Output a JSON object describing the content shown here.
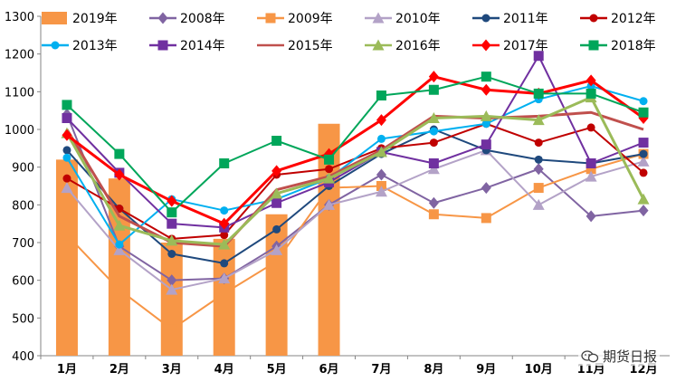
{
  "chart_data": {
    "type": "bar+line",
    "title": "",
    "xlabel": "",
    "ylabel": "",
    "ylim": [
      400,
      1300
    ],
    "yticks": [
      400,
      500,
      600,
      700,
      800,
      900,
      1000,
      1100,
      1200,
      1300
    ],
    "grid": false,
    "legend": "top",
    "categories": [
      "1月",
      "2月",
      "3月",
      "4月",
      "5月",
      "6月",
      "7月",
      "8月",
      "9月",
      "10月",
      "11月",
      "12月"
    ],
    "bar_series": {
      "name": "2019年",
      "color": "#F79646",
      "values": [
        920,
        870,
        700,
        710,
        775,
        1015,
        null,
        null,
        null,
        null,
        null,
        null
      ]
    },
    "series": [
      {
        "name": "2008年",
        "color": "#8064A2",
        "marker": "diamond",
        "values": [
          1040,
          690,
          600,
          605,
          690,
          800,
          880,
          805,
          845,
          895,
          770,
          785
        ]
      },
      {
        "name": "2009年",
        "color": "#F79646",
        "marker": "square",
        "values": [
          720,
          575,
          470,
          565,
          650,
          845,
          850,
          775,
          765,
          845,
          895,
          935
        ]
      },
      {
        "name": "2010年",
        "color": "#B3A2C7",
        "marker": "triangle",
        "values": [
          845,
          680,
          575,
          605,
          680,
          800,
          835,
          895,
          945,
          800,
          875,
          915
        ]
      },
      {
        "name": "2011年",
        "color": "#1F497D",
        "marker": "circle",
        "values": [
          945,
          790,
          670,
          645,
          735,
          850,
          935,
          1000,
          945,
          920,
          910,
          935
        ]
      },
      {
        "name": "2012年",
        "color": "#C00000",
        "marker": "circle",
        "values": [
          870,
          790,
          710,
          720,
          880,
          895,
          950,
          965,
          1015,
          965,
          1005,
          885
        ]
      },
      {
        "name": "2013年",
        "color": "#00B0F0",
        "marker": "circle",
        "values": [
          925,
          695,
          815,
          785,
          815,
          870,
          975,
          995,
          1015,
          1080,
          1115,
          1075
        ]
      },
      {
        "name": "2014年",
        "color": "#7030A0",
        "marker": "square",
        "values": [
          1030,
          885,
          750,
          740,
          805,
          860,
          940,
          910,
          960,
          1195,
          910,
          965
        ]
      },
      {
        "name": "2015年",
        "color": "#C0504D",
        "marker": "none",
        "values": [
          1000,
          770,
          700,
          690,
          840,
          875,
          945,
          1035,
          1030,
          1035,
          1045,
          1000
        ]
      },
      {
        "name": "2016年",
        "color": "#9BBB59",
        "marker": "triangle",
        "values": [
          990,
          745,
          705,
          695,
          830,
          870,
          940,
          1030,
          1035,
          1025,
          1085,
          815
        ]
      },
      {
        "name": "2017年",
        "color": "#FF0000",
        "marker": "diamond",
        "values": [
          985,
          880,
          810,
          750,
          890,
          935,
          1025,
          1140,
          1105,
          1095,
          1130,
          1030
        ]
      },
      {
        "name": "2018年",
        "color": "#00A65A",
        "marker": "square",
        "values": [
          1065,
          935,
          780,
          910,
          970,
          920,
          1090,
          1105,
          1140,
          1095,
          1095,
          1045
        ]
      }
    ]
  },
  "watermark": {
    "text": "期货日报",
    "icon": "wechat-icon"
  }
}
